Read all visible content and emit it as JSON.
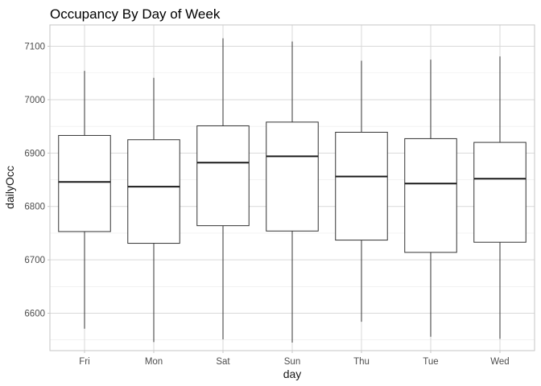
{
  "chart_data": {
    "type": "boxplot",
    "title": "Occupancy By Day of Week",
    "xlabel": "day",
    "ylabel": "dailyOcc",
    "ylim": [
      6530,
      7140
    ],
    "yticks": [
      6600,
      6700,
      6800,
      6900,
      7000,
      7100
    ],
    "grid": true,
    "categories": [
      "Fri",
      "Mon",
      "Sat",
      "Sun",
      "Thu",
      "Tue",
      "Wed"
    ],
    "boxes": [
      {
        "min": 6571,
        "q1": 6753,
        "median": 6846,
        "q3": 6933,
        "max": 7054
      },
      {
        "min": 6546,
        "q1": 6731,
        "median": 6837,
        "q3": 6925,
        "max": 7041
      },
      {
        "min": 6551,
        "q1": 6764,
        "median": 6882,
        "q3": 6951,
        "max": 7115
      },
      {
        "min": 6545,
        "q1": 6754,
        "median": 6894,
        "q3": 6958,
        "max": 7109
      },
      {
        "min": 6584,
        "q1": 6737,
        "median": 6856,
        "q3": 6939,
        "max": 7073
      },
      {
        "min": 6556,
        "q1": 6714,
        "median": 6843,
        "q3": 6927,
        "max": 7075
      },
      {
        "min": 6552,
        "q1": 6733,
        "median": 6852,
        "q3": 6920,
        "max": 7081
      }
    ]
  }
}
